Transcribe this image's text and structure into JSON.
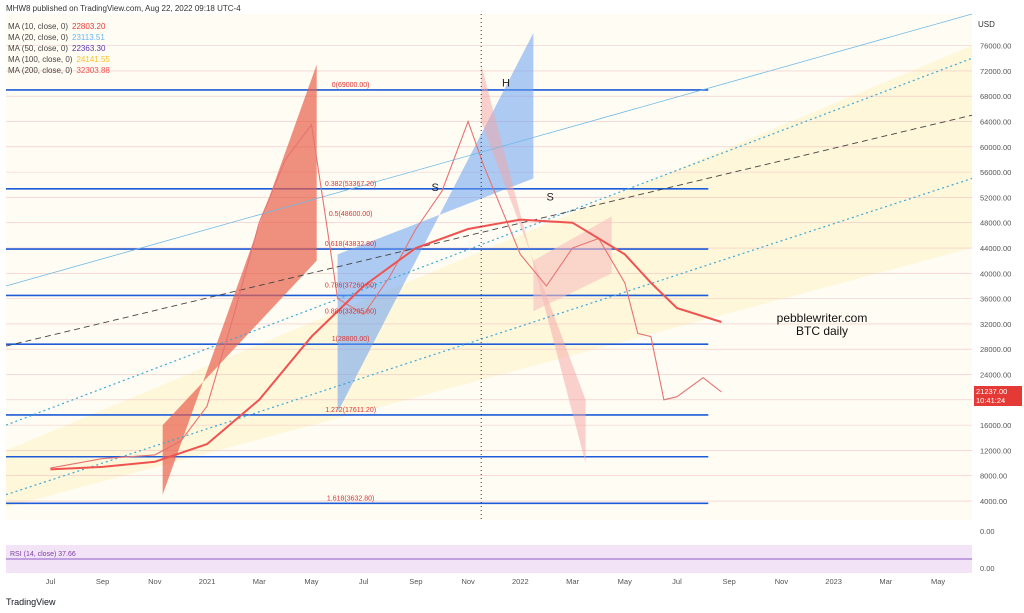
{
  "header": {
    "published": "MHW8 published on TradingView.com, Aug 22, 2022 09:18 UTC-4"
  },
  "brand": "TradingView",
  "currency": "USD",
  "moving_averages": [
    {
      "label": "MA (10, close, 0)",
      "value": "22803.20",
      "color": "#e53935"
    },
    {
      "label": "MA (20, close, 0)",
      "value": "23113.51",
      "color": "#64b5f6"
    },
    {
      "label": "MA (50, close, 0)",
      "value": "22363.30",
      "color": "#5e35b1"
    },
    {
      "label": "MA (100, close, 0)",
      "value": "24141.55",
      "color": "#fbc02d"
    },
    {
      "label": "MA (200, close, 0)",
      "value": "32303.88",
      "color": "#ef5350"
    }
  ],
  "annotations": {
    "watermark": "pebblewriter.com",
    "subtitle": "BTC daily",
    "letter_h": "H",
    "letter_s1": "S",
    "letter_s2": "S",
    "rsi_label": "RSI (14, close)",
    "rsi_value": "37.66",
    "last_price": "21237.00",
    "countdown": "10:41:24"
  },
  "fib_labels": [
    {
      "text": "0(69000.00)",
      "price": 69000
    },
    {
      "text": "0.382(53367.20)",
      "price": 53367.2
    },
    {
      "text": "0.5(48600.00)",
      "price": 48600
    },
    {
      "text": "0.618(43832.80)",
      "price": 43832.8
    },
    {
      "text": "0.786(37260.60)",
      "price": 37260.6
    },
    {
      "text": "0.886(33205.80)",
      "price": 33205.8
    },
    {
      "text": "1(28800.00)",
      "price": 28800
    },
    {
      "text": "1.272(17611.20)",
      "price": 17611.2
    },
    {
      "text": "1.618(3632.80)",
      "price": 3632.8
    }
  ],
  "chart_data": {
    "type": "line",
    "title": "",
    "xlabel": "",
    "ylabel": "USD",
    "ylim": [
      1000,
      81000
    ],
    "y_ticks": [
      "76000.00",
      "72000.00",
      "68000.00",
      "64000.00",
      "60000.00",
      "56000.00",
      "52000.00",
      "48000.00",
      "44000.00",
      "40000.00",
      "36000.00",
      "32000.00",
      "28000.00",
      "24000.00",
      "20000.00",
      "16000.00",
      "12000.00",
      "8000.00",
      "4000.00"
    ],
    "y_tick_values": [
      76000,
      72000,
      68000,
      64000,
      60000,
      56000,
      52000,
      48000,
      44000,
      40000,
      36000,
      32000,
      28000,
      24000,
      20000,
      16000,
      12000,
      8000,
      4000
    ],
    "x_ticks": [
      "Jul",
      "Sep",
      "Nov",
      "2021",
      "Mar",
      "May",
      "Jul",
      "Sep",
      "Nov",
      "2022",
      "Mar",
      "May",
      "Jul",
      "Sep",
      "Nov",
      "2023",
      "Mar",
      "May"
    ],
    "x_tick_months": [
      6,
      8,
      10,
      12,
      14,
      16,
      18,
      20,
      22,
      24,
      26,
      28,
      30,
      32,
      34,
      36,
      38,
      40
    ],
    "rsi_ticks": [
      "0.00",
      "0.00"
    ],
    "horizontal_levels": [
      69000,
      53367.2,
      43832.8,
      36500,
      28800,
      17611.2,
      11000,
      3632.8
    ],
    "series": [
      {
        "name": "BTC",
        "color": "#e57373",
        "points": [
          [
            6,
            9200
          ],
          [
            8,
            10700
          ],
          [
            10,
            11300
          ],
          [
            11,
            13500
          ],
          [
            12,
            19000
          ],
          [
            13,
            33000
          ],
          [
            14,
            48000
          ],
          [
            15,
            58000
          ],
          [
            16,
            63500
          ],
          [
            16.5,
            50000
          ],
          [
            17,
            36000
          ],
          [
            18,
            33500
          ],
          [
            19,
            39500
          ],
          [
            20,
            47000
          ],
          [
            21,
            53000
          ],
          [
            22,
            64000
          ],
          [
            22.6,
            57000
          ],
          [
            23.5,
            48000
          ],
          [
            24,
            43000
          ],
          [
            25,
            38000
          ],
          [
            26,
            44000
          ],
          [
            27,
            45500
          ],
          [
            28,
            38500
          ],
          [
            28.5,
            30500
          ],
          [
            29,
            30000
          ],
          [
            29.5,
            20000
          ],
          [
            30,
            20500
          ],
          [
            31,
            23500
          ],
          [
            31.7,
            21237
          ]
        ]
      },
      {
        "name": "MA (200, close, 0)",
        "color": "#ef5350",
        "points": [
          [
            6,
            9000
          ],
          [
            8,
            9400
          ],
          [
            10,
            10200
          ],
          [
            12,
            13000
          ],
          [
            14,
            20000
          ],
          [
            16,
            30000
          ],
          [
            18,
            38000
          ],
          [
            20,
            44000
          ],
          [
            22,
            47000
          ],
          [
            24,
            48500
          ],
          [
            26,
            48000
          ],
          [
            28,
            43000
          ],
          [
            29,
            38500
          ],
          [
            30,
            34500
          ],
          [
            31.7,
            32303.88
          ]
        ]
      }
    ]
  }
}
